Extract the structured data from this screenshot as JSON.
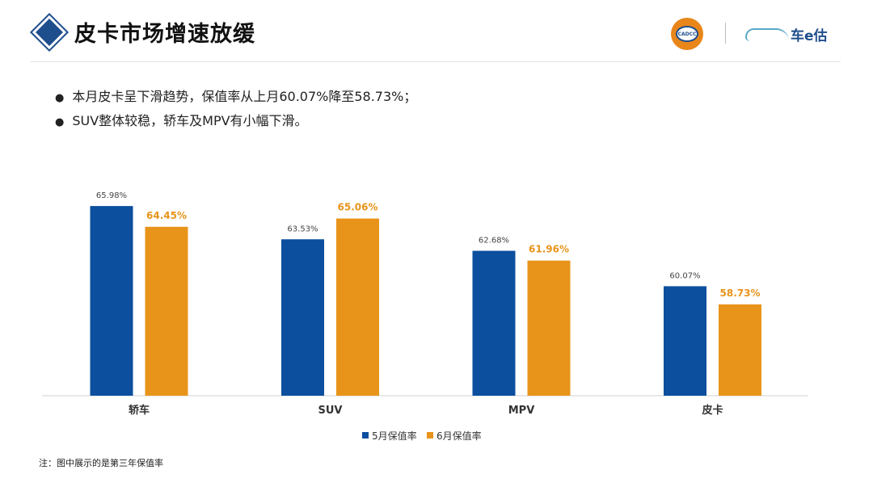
{
  "header": {
    "title": "皮卡市场增速放缓",
    "logo_left": "CADCC",
    "logo_right": "车e估"
  },
  "bullets": [
    "本月皮卡呈下滑趋势，保值率从上月60.07%降至58.73%；",
    "SUV整体较稳，轿车及MPV有小幅下滑。"
  ],
  "note": "注：图中展示的是第三年保值率",
  "colors": {
    "series1": "#0b4f9e",
    "series2": "#e8941a"
  },
  "chart_data": {
    "type": "bar",
    "categories": [
      "轿车",
      "SUV",
      "MPV",
      "皮卡"
    ],
    "series": [
      {
        "name": "5月保值率",
        "values": [
          65.98,
          63.53,
          62.68,
          60.07
        ],
        "labels": [
          "65.98%",
          "63.53%",
          "62.68%",
          "60.07%"
        ]
      },
      {
        "name": "6月保值率",
        "values": [
          64.45,
          65.06,
          61.96,
          58.73
        ],
        "labels": [
          "64.45%",
          "65.06%",
          "61.96%",
          "58.73%"
        ]
      }
    ],
    "ylim": [
      52,
      67
    ],
    "legend": "bottom",
    "grid": false
  }
}
